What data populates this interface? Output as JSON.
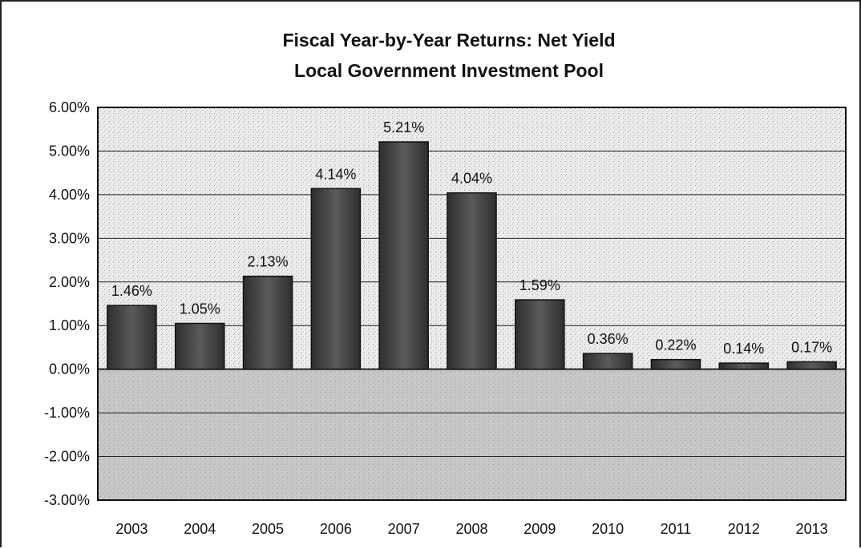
{
  "chart_data": {
    "type": "bar",
    "title": "Fiscal Year-by-Year Returns: Net Yield",
    "subtitle": "Local Government Investment Pool",
    "xlabel": "",
    "ylabel": "",
    "categories": [
      "2003",
      "2004",
      "2005",
      "2006",
      "2007",
      "2008",
      "2009",
      "2010",
      "2011",
      "2012",
      "2013"
    ],
    "values": [
      1.46,
      1.05,
      2.13,
      4.14,
      5.21,
      4.04,
      1.59,
      0.36,
      0.22,
      0.14,
      0.17
    ],
    "data_labels": [
      "1.46%",
      "1.05%",
      "2.13%",
      "4.14%",
      "5.21%",
      "4.04%",
      "1.59%",
      "0.36%",
      "0.22%",
      "0.14%",
      "0.17%"
    ],
    "ylim": [
      -3,
      6
    ],
    "yticks": [
      6,
      5,
      4,
      3,
      2,
      1,
      0,
      -1,
      -2,
      -3
    ],
    "ytick_labels": [
      "6.00%",
      "5.00%",
      "4.00%",
      "3.00%",
      "2.00%",
      "1.00%",
      "0.00%",
      "-1.00%",
      "-2.00%",
      "-3.00%"
    ],
    "grid": true,
    "legend": "none",
    "colors": {
      "bar": "#4a4a4a",
      "plot_background_upper": "#ececec",
      "plot_background_lower": "#c8c8c8",
      "gridline": "#222222"
    }
  }
}
